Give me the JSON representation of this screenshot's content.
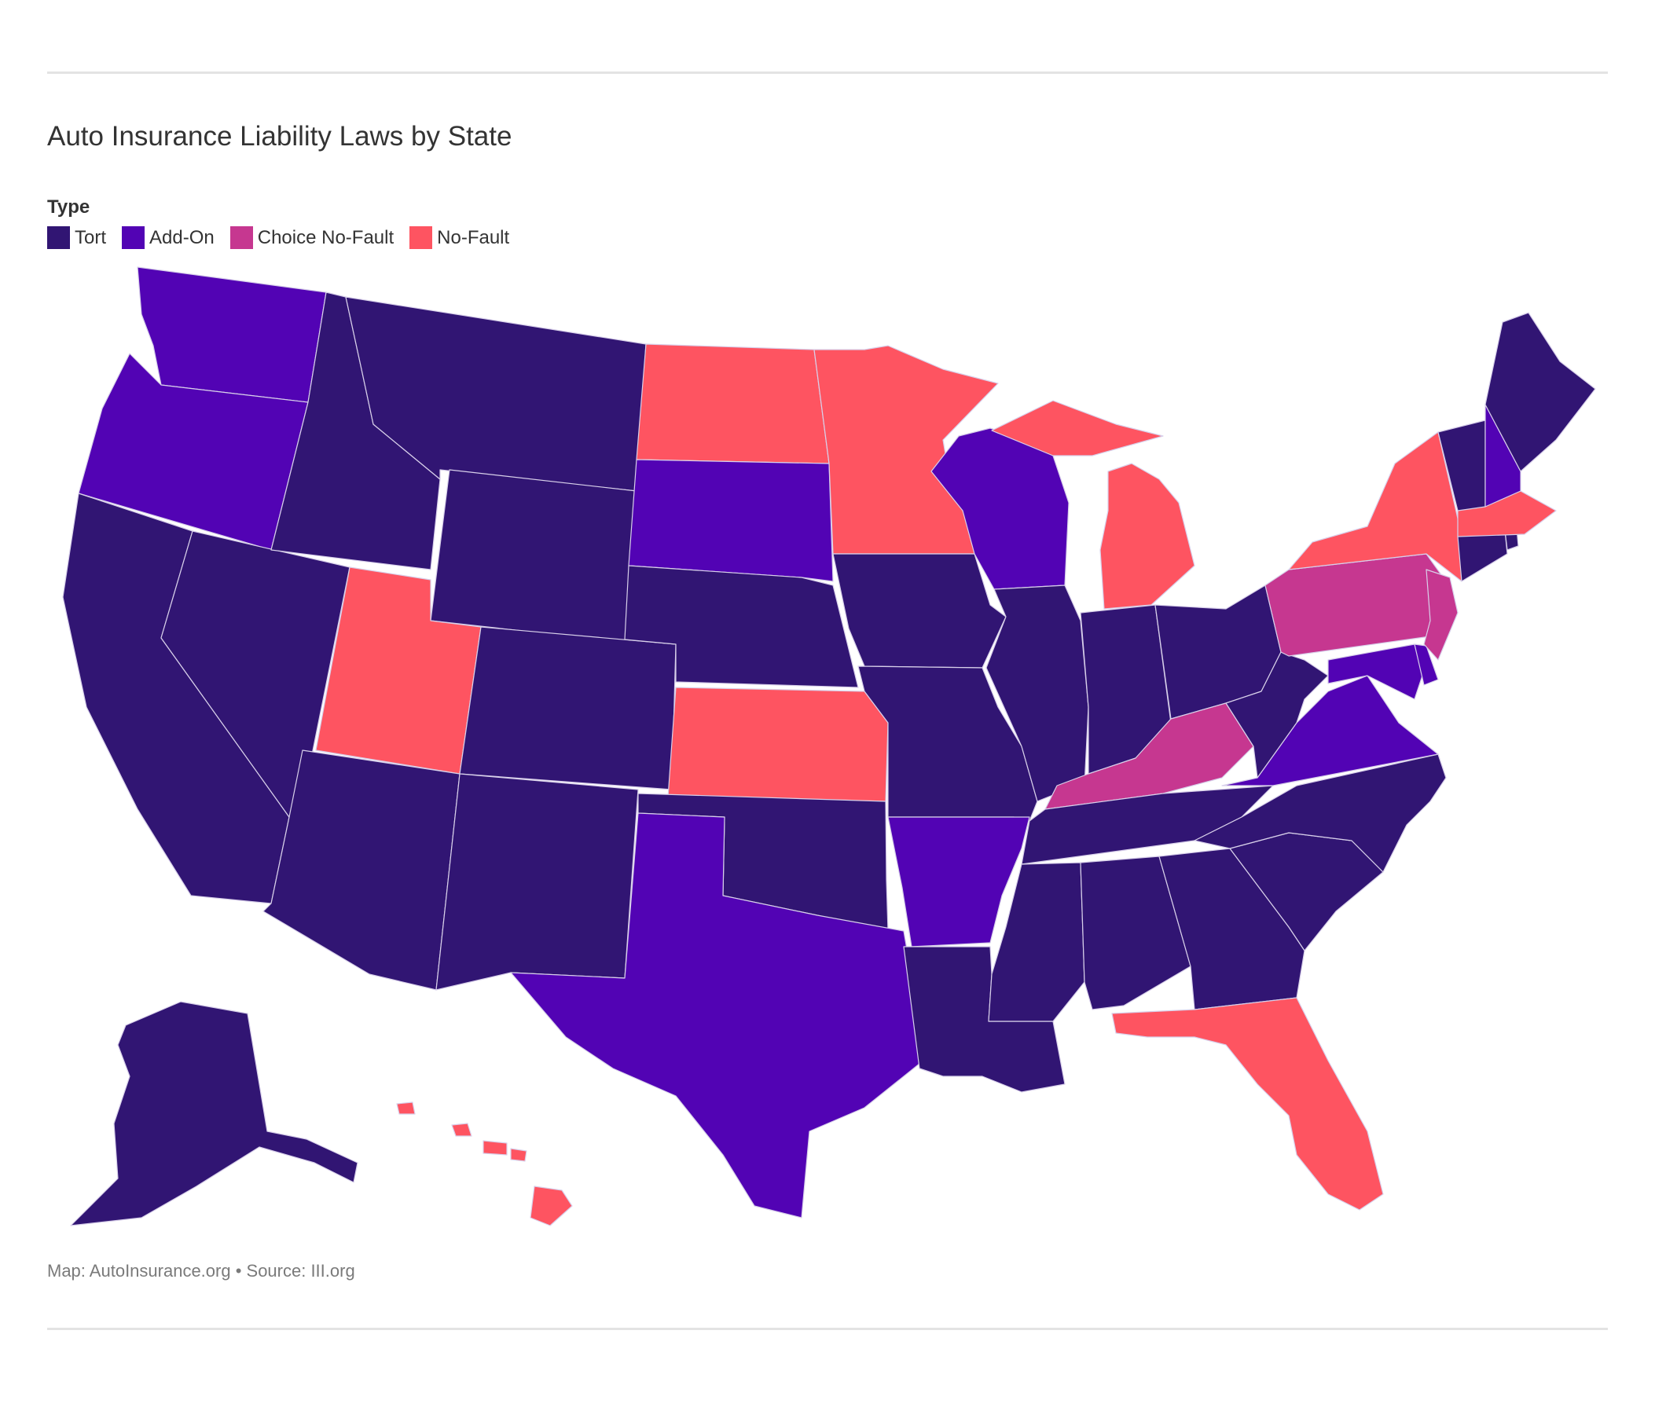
{
  "title": "Auto Insurance Liability Laws by State",
  "legend": {
    "title": "Type",
    "items": [
      {
        "label": "Tort",
        "color": "#311573"
      },
      {
        "label": "Add-On",
        "color": "#5203b4"
      },
      {
        "label": "Choice No-Fault",
        "color": "#c63790"
      },
      {
        "label": "No-Fault",
        "color": "#fe5461"
      }
    ]
  },
  "source": "Map: AutoInsurance.org • Source: III.org",
  "map_data": {
    "type": "choropleth",
    "categories": [
      "Tort",
      "Add-On",
      "Choice No-Fault",
      "No-Fault"
    ],
    "states": {
      "AL": "Tort",
      "AK": "Tort",
      "AZ": "Tort",
      "AR": "Add-On",
      "CA": "Tort",
      "CO": "Tort",
      "CT": "Tort",
      "DE": "Add-On",
      "FL": "No-Fault",
      "GA": "Tort",
      "HI": "No-Fault",
      "ID": "Tort",
      "IL": "Tort",
      "IN": "Tort",
      "IA": "Tort",
      "KS": "No-Fault",
      "KY": "Choice No-Fault",
      "LA": "Tort",
      "ME": "Tort",
      "MD": "Add-On",
      "MA": "No-Fault",
      "MI": "No-Fault",
      "MN": "No-Fault",
      "MS": "Tort",
      "MO": "Tort",
      "MT": "Tort",
      "NE": "Tort",
      "NV": "Tort",
      "NH": "Add-On",
      "NJ": "Choice No-Fault",
      "NM": "Tort",
      "NY": "No-Fault",
      "NC": "Tort",
      "ND": "No-Fault",
      "OH": "Tort",
      "OK": "Tort",
      "OR": "Add-On",
      "PA": "Choice No-Fault",
      "RI": "Tort",
      "SC": "Tort",
      "SD": "Add-On",
      "TN": "Tort",
      "TX": "Add-On",
      "UT": "No-Fault",
      "VT": "Tort",
      "VA": "Add-On",
      "WA": "Add-On",
      "WV": "Tort",
      "WI": "Add-On",
      "WY": "Tort"
    }
  }
}
